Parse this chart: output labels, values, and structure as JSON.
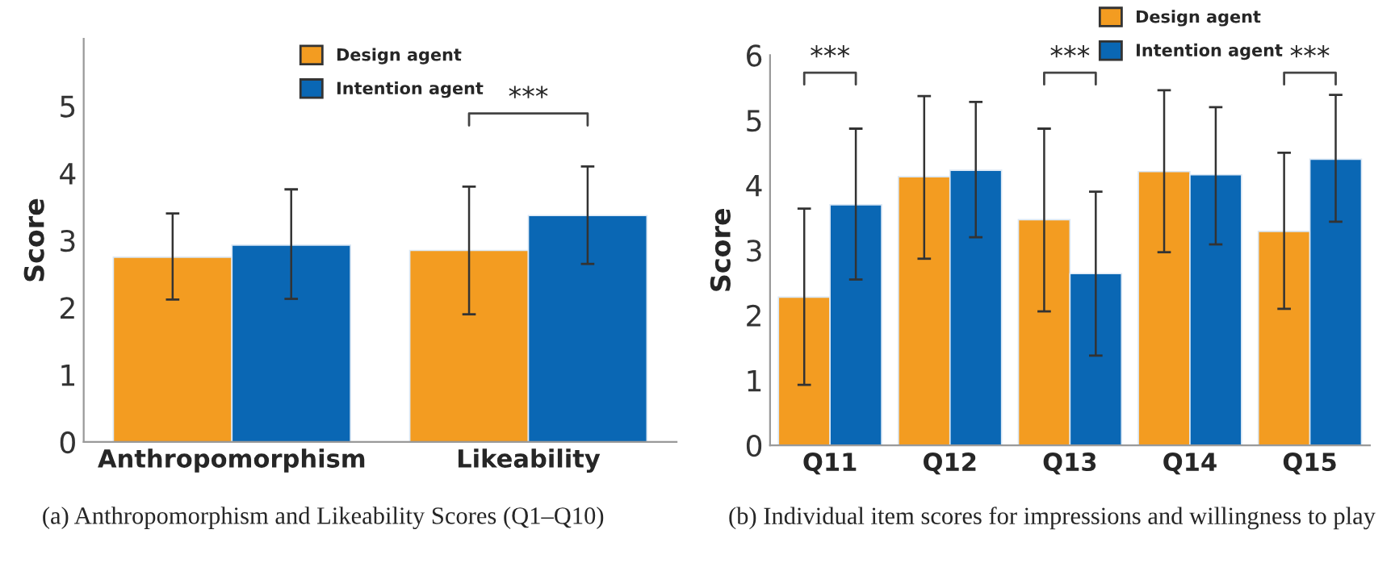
{
  "chart_data": [
    {
      "type": "bar",
      "ylabel": "Score",
      "categories": [
        "Anthropomorphism",
        "Likeability"
      ],
      "ylim": [
        0,
        6
      ],
      "yticks": [
        0,
        1,
        2,
        3,
        4,
        5
      ],
      "legend": "top",
      "grid": false,
      "series": [
        {
          "name": "Design agent",
          "color": "#f39c21",
          "values": [
            2.75,
            2.85
          ],
          "errors": [
            [
              2.12,
              3.4
            ],
            [
              1.9,
              3.8
            ]
          ]
        },
        {
          "name": "Intention agent",
          "color": "#0a67b4",
          "values": [
            2.93,
            3.37
          ],
          "errors": [
            [
              2.13,
              3.76
            ],
            [
              2.65,
              4.1
            ]
          ]
        }
      ],
      "annotations": [
        "***",
        "(a) Anthropomorphism and Likeability Scores (Q1–Q10)"
      ]
    },
    {
      "type": "bar",
      "ylabel": "Score",
      "categories": [
        "Q11",
        "Q12",
        "Q13",
        "Q14",
        "Q15"
      ],
      "ylim": [
        0,
        6
      ],
      "yticks": [
        0,
        1,
        2,
        3,
        4,
        5,
        6
      ],
      "legend": "top right",
      "grid": false,
      "series": [
        {
          "name": "Design agent",
          "color": "#f39c21",
          "values": [
            2.28,
            4.13,
            3.47,
            4.21,
            3.29
          ],
          "errors": [
            [
              0.93,
              3.64
            ],
            [
              2.87,
              5.37
            ],
            [
              2.06,
              4.87
            ],
            [
              2.97,
              5.46
            ],
            [
              2.1,
              4.5
            ]
          ]
        },
        {
          "name": "Intention agent",
          "color": "#0a67b4",
          "values": [
            3.7,
            4.23,
            2.64,
            4.16,
            4.4
          ],
          "errors": [
            [
              2.55,
              4.87
            ],
            [
              3.2,
              5.28
            ],
            [
              1.38,
              3.9
            ],
            [
              3.09,
              5.2
            ],
            [
              3.44,
              5.39
            ]
          ]
        }
      ],
      "annotations": [
        "***",
        "***",
        "***",
        "(b) Individual item scores for impressions and willingness to play"
      ]
    }
  ]
}
